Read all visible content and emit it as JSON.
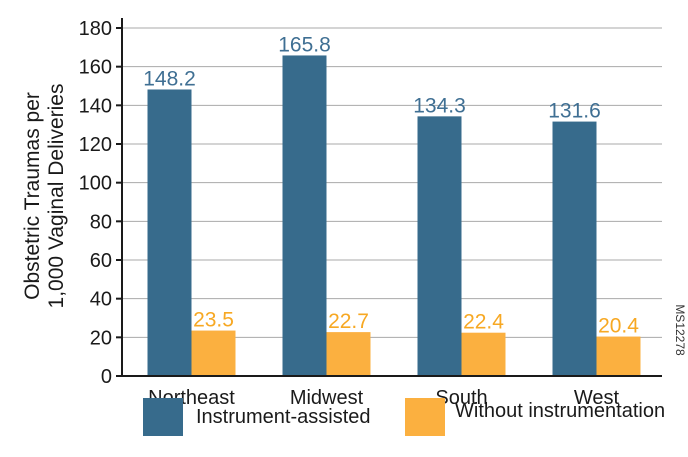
{
  "chart_data": {
    "type": "bar",
    "title": "",
    "xlabel": "",
    "ylabel_lines": [
      "Obstetric Traumas per",
      "1,000 Vaginal Deliveries"
    ],
    "categories": [
      "Northeast",
      "Midwest",
      "South",
      "West"
    ],
    "series": [
      {
        "name": "Instrument-assisted",
        "color": "#376b8c",
        "values": [
          148.2,
          165.8,
          134.3,
          131.6
        ],
        "labels": [
          "148.2",
          "165.8",
          "134.3",
          "131.6"
        ]
      },
      {
        "name": "Without instrumentation",
        "color": "#fbb040",
        "values": [
          23.5,
          22.7,
          22.4,
          20.4
        ],
        "labels": [
          "23.5",
          "22.7",
          "22.4",
          "20.4"
        ]
      }
    ],
    "ylim": [
      0,
      180
    ],
    "yticks": [
      0,
      20,
      40,
      60,
      80,
      100,
      120,
      140,
      160,
      180
    ],
    "grid": true,
    "legend_position": "bottom",
    "label_color_series_0": "#3f6f93",
    "label_color_series_1": "#f7a823"
  },
  "figure_code": "MS12278"
}
